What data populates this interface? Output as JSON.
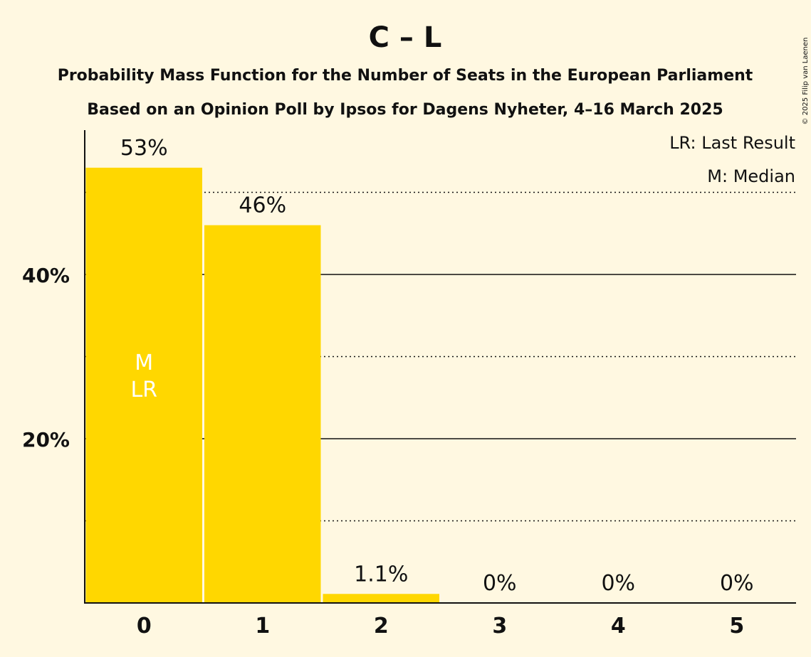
{
  "title": "C – L",
  "subtitle_1": "Probability Mass Function for the Number of Seats in the European Parliament",
  "subtitle_2": "Based on an Opinion Poll by Ipsos for Dagens Nyheter, 4–16 March 2025",
  "copyright": "© 2025 Filip van Laenen",
  "legend": {
    "last_result": "LR: Last Result",
    "median": "M: Median"
  },
  "colors": {
    "background": "#FFF8E1",
    "bar": "#FFD700",
    "text": "#111111"
  },
  "chart_data": {
    "type": "bar",
    "categories": [
      "0",
      "1",
      "2",
      "3",
      "4",
      "5"
    ],
    "values": [
      53,
      46,
      1.1,
      0,
      0,
      0
    ],
    "value_labels": [
      "53%",
      "46%",
      "1.1%",
      "0%",
      "0%",
      "0%"
    ],
    "bar_markers": [
      [
        "M",
        "LR"
      ],
      [],
      [],
      [],
      [],
      []
    ],
    "ylim": [
      0,
      57.5
    ],
    "yticks": [
      {
        "value": 20,
        "label": "20%"
      },
      {
        "value": 40,
        "label": "40%"
      }
    ],
    "gridlines_solid": [
      20,
      40
    ],
    "gridlines_dotted": [
      10,
      30,
      50
    ],
    "grid": true,
    "legend_position": "top-right"
  }
}
